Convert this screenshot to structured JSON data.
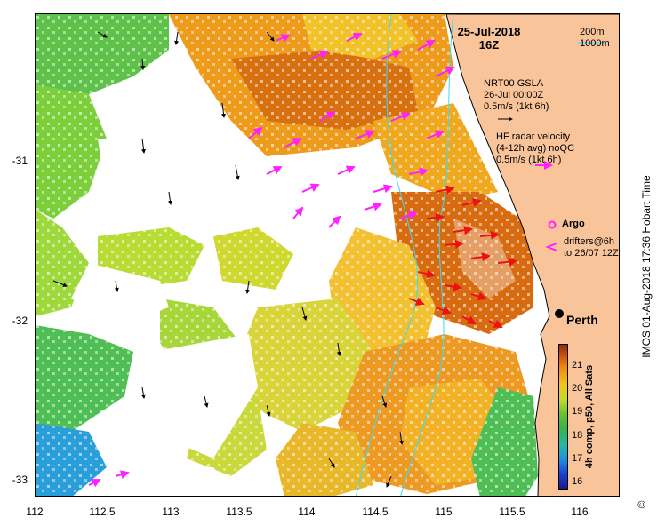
{
  "map": {
    "date": "25-Jul-2018",
    "time": "16Z",
    "contour_labels": [
      "200m",
      "1000m"
    ],
    "gsla_legend": [
      "NRT00 GSLA",
      "26-Jul 00:00Z",
      "0.5m/s (1kt 6h)"
    ],
    "hf_legend": [
      "HF radar velocity",
      "(4-12h avg) noQC",
      "0.5m/s (1kt 6h)"
    ],
    "argo_label": "Argo",
    "drifter_legend": [
      "drifters@6h",
      "to 26/07 12Z"
    ],
    "city_label": "Perth",
    "x_ticks": [
      "112",
      "112.5",
      "113",
      "113.5",
      "114",
      "114.5",
      "115",
      "115.5",
      "116"
    ],
    "y_ticks": [
      "-31",
      "-32",
      "-33"
    ],
    "colorbar": {
      "ticks": [
        "21",
        "20",
        "19",
        "18",
        "17",
        "16"
      ],
      "label": "4h comp, p50, All Sats"
    },
    "credit": "IMOS 01-Aug-2018 17:36 Hobart Time",
    "copyright": "©",
    "colors": {
      "land": "#f9c49a",
      "hf_arrow": "#ff22ff",
      "drifter_arrow": "#ee1111",
      "contour": "#33ddff"
    }
  }
}
